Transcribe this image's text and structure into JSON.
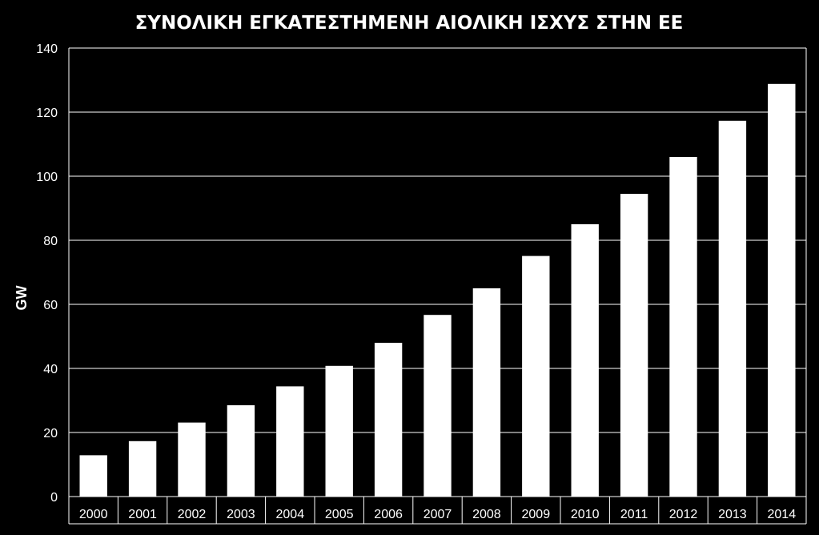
{
  "chart_data": {
    "type": "bar",
    "title": "ΣΥΝΟΛΙΚΗ ΕΓΚΑΤΕΣΤΗΜΕΝΗ ΑΙΟΛΙΚΗ ΙΣΧΥΣ ΣΤΗΝ ΕΕ",
    "xlabel": "",
    "ylabel": "GW",
    "categories": [
      "2000",
      "2001",
      "2002",
      "2003",
      "2004",
      "2005",
      "2006",
      "2007",
      "2008",
      "2009",
      "2010",
      "2011",
      "2012",
      "2013",
      "2014"
    ],
    "values": [
      12.9,
      17.3,
      23.1,
      28.5,
      34.4,
      40.8,
      48.0,
      56.7,
      65.0,
      75.1,
      85.0,
      94.5,
      106.0,
      117.3,
      128.8
    ],
    "ylim": [
      0,
      140
    ],
    "yticks": [
      0,
      20,
      40,
      60,
      80,
      100,
      120,
      140
    ],
    "grid": true,
    "colors": {
      "background": "#000000",
      "bar": "#ffffff",
      "grid": "#ffffff",
      "text": "#ffffff"
    }
  }
}
